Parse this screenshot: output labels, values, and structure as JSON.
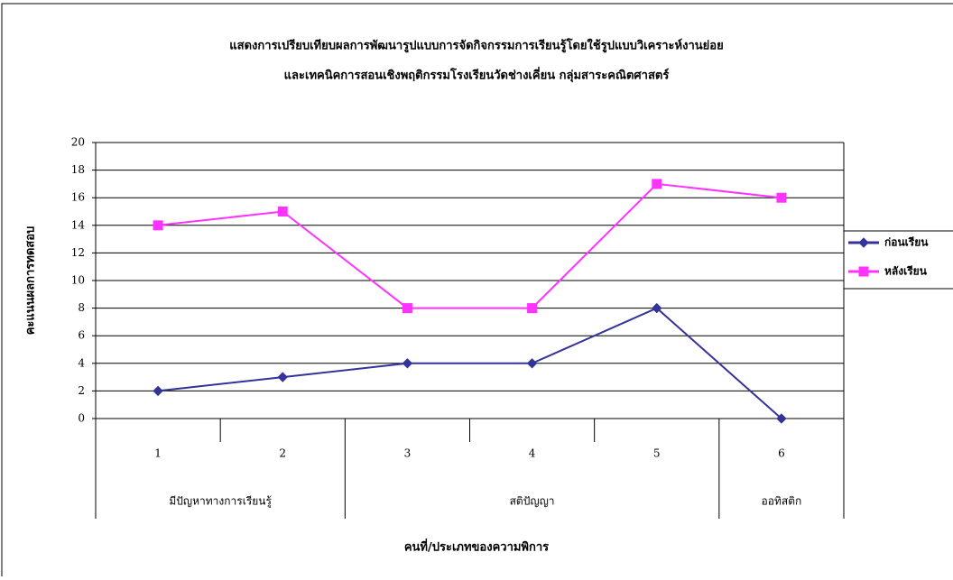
{
  "chart_data": {
    "type": "line",
    "title": [
      "แสดงการเปรียบเทียบผลการพัฒนารูปแบบการจัดกิจกรรมการเรียนรู้โดยใช้รูปแบบวิเคราะห์งานย่อย",
      "และเทคนิคการสอนเชิงพฤติกรรมโรงเรียนวัดช่างเคี่ยน กลุ่มสาระคณิตศาสตร์"
    ],
    "x_label": "คนที่/ประเภทของความพิการ",
    "y_label": "คะแนนผลการทดสอบ",
    "categories": [
      "1",
      "2",
      "3",
      "4",
      "5",
      "6"
    ],
    "x_groups": [
      "มีปัญหาทางการเรียนรู้",
      null,
      "สติปัญญา",
      null,
      null,
      "ออทิสติก"
    ],
    "series": [
      {
        "name": "ก่อนเรียน",
        "color": "#333399",
        "marker": "diamond",
        "values": [
          2,
          3,
          4,
          4,
          8,
          0
        ]
      },
      {
        "name": "หลังเรียน",
        "color": "#ff33ff",
        "marker": "square",
        "values": [
          14,
          15,
          8,
          8,
          17,
          16
        ]
      }
    ],
    "ylim": [
      0,
      20
    ],
    "yticks": [
      0,
      2,
      4,
      6,
      8,
      10,
      12,
      14,
      16,
      18,
      20
    ],
    "grid": true,
    "legend": "right"
  }
}
